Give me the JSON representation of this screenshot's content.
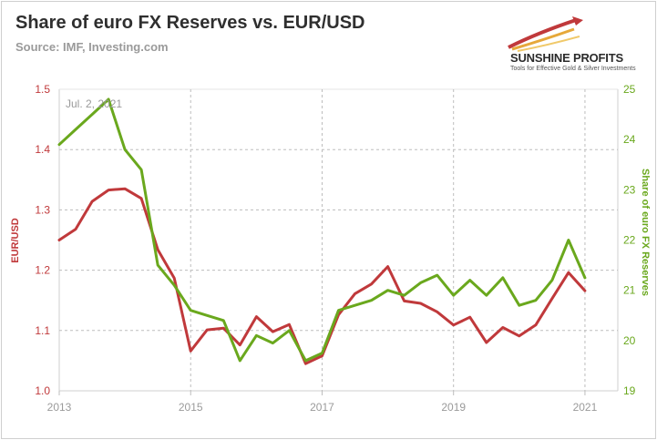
{
  "title": "Share of euro FX Reserves vs. EUR/USD",
  "subtitle": "Source: IMF, Investing.com",
  "logo": {
    "name": "SUNSHINE PROFITS",
    "tagline": "Tools for Effective Gold & Silver Investments"
  },
  "colors": {
    "eurusd": "#c0393b",
    "share": "#6aa81d",
    "grid": "#bdbdbd",
    "tick": "#9a9a9a"
  },
  "chart_data": {
    "type": "line",
    "annotation": "Jul. 2, 2021",
    "x_ticks": [
      "2013",
      "2015",
      "2017",
      "2019",
      "2021"
    ],
    "xlim": [
      2013.0,
      2021.5
    ],
    "y_left": {
      "label": "EUR/USD",
      "lim": [
        1.0,
        1.5
      ],
      "ticks": [
        "1.0",
        "1.1",
        "1.2",
        "1.3",
        "1.4",
        "1.5"
      ]
    },
    "y_right": {
      "label": "Share of euro FX Reserves",
      "lim": [
        19,
        25
      ],
      "ticks": [
        "19",
        "20",
        "21",
        "22",
        "23",
        "24",
        "25"
      ]
    },
    "grid": true,
    "series": [
      {
        "name": "EUR/USD",
        "axis": "left",
        "x": [
          2013.0,
          2013.25,
          2013.5,
          2013.75,
          2014.0,
          2014.25,
          2014.5,
          2014.75,
          2015.0,
          2015.25,
          2015.5,
          2015.75,
          2016.0,
          2016.25,
          2016.5,
          2016.75,
          2017.0,
          2017.25,
          2017.5,
          2017.75,
          2018.0,
          2018.25,
          2018.5,
          2018.75,
          2019.0,
          2019.25,
          2019.5,
          2019.75,
          2020.0,
          2020.25,
          2020.5,
          2020.75,
          2021.0
        ],
        "values": [
          1.25,
          1.268,
          1.314,
          1.333,
          1.335,
          1.319,
          1.234,
          1.187,
          1.066,
          1.101,
          1.104,
          1.076,
          1.123,
          1.098,
          1.11,
          1.045,
          1.058,
          1.126,
          1.161,
          1.177,
          1.206,
          1.149,
          1.145,
          1.131,
          1.109,
          1.122,
          1.08,
          1.105,
          1.091,
          1.109,
          1.153,
          1.196,
          1.166
        ]
      },
      {
        "name": "Share of euro FX Reserves",
        "axis": "right",
        "x": [
          2013.0,
          2013.25,
          2013.5,
          2013.75,
          2014.0,
          2014.25,
          2014.5,
          2014.75,
          2015.0,
          2015.25,
          2015.5,
          2015.75,
          2016.0,
          2016.25,
          2016.5,
          2016.75,
          2017.0,
          2017.25,
          2017.5,
          2017.75,
          2018.0,
          2018.25,
          2018.5,
          2018.75,
          2019.0,
          2019.25,
          2019.5,
          2019.75,
          2020.0,
          2020.25,
          2020.5,
          2020.75,
          2021.0
        ],
        "values": [
          23.9,
          24.2,
          24.5,
          24.8,
          23.8,
          23.4,
          21.5,
          21.1,
          20.6,
          20.5,
          20.4,
          19.6,
          20.1,
          19.95,
          20.2,
          19.6,
          19.75,
          20.6,
          20.7,
          20.8,
          21.0,
          20.9,
          21.15,
          21.3,
          20.9,
          21.2,
          20.9,
          21.25,
          20.7,
          20.8,
          21.2,
          22.0,
          21.25
        ]
      }
    ]
  }
}
